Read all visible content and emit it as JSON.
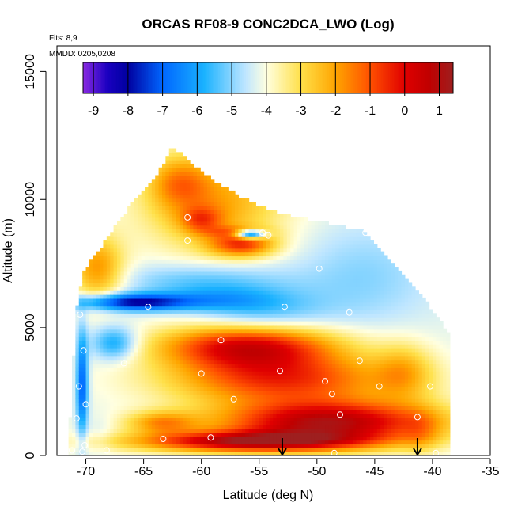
{
  "chart_data": {
    "type": "heatmap",
    "title": "ORCAS RF08-9 CONC2DCA_LWO (Log)",
    "flights_note": "Flts: 8,9",
    "date_note": "MMDD: 0205,0208",
    "xlabel": "Latitude (deg N)",
    "ylabel": "Altitude (m)",
    "xlim": [
      -72.5,
      -35
    ],
    "ylim": [
      0,
      16000
    ],
    "x_ticks": [
      "-70",
      "-65",
      "-60",
      "-55",
      "-50",
      "-45",
      "-40",
      "-35"
    ],
    "y_ticks": [
      "0",
      "5000",
      "10000",
      "15000"
    ],
    "colorbar": {
      "ticks": [
        "-9",
        "-8",
        "-7",
        "-6",
        "-5",
        "-4",
        "-3",
        "-2",
        "-1",
        "0",
        "1"
      ],
      "range": [
        -9.3,
        1.4
      ],
      "stops": [
        {
          "v": -9.3,
          "c": "#8a2be2"
        },
        {
          "v": -8.6,
          "c": "#1a00c0"
        },
        {
          "v": -8.0,
          "c": "#0000a0"
        },
        {
          "v": -7.0,
          "c": "#0066ff"
        },
        {
          "v": -5.8,
          "c": "#1ab2ff"
        },
        {
          "v": -4.6,
          "c": "#bfe6ff"
        },
        {
          "v": -4.0,
          "c": "#ffffe0"
        },
        {
          "v": -3.0,
          "c": "#ffe04a"
        },
        {
          "v": -2.0,
          "c": "#ffa500"
        },
        {
          "v": -1.0,
          "c": "#ff5000"
        },
        {
          "v": 0.0,
          "c": "#e00000"
        },
        {
          "v": 0.7,
          "c": "#c00000"
        },
        {
          "v": 1.4,
          "c": "#9e1f1f"
        }
      ]
    },
    "flight_arrows_lat": [
      -53,
      -41.3
    ],
    "sample_points": [
      {
        "lat": -70.5,
        "alt": 5500
      },
      {
        "lat": -70.2,
        "alt": 4100
      },
      {
        "lat": -70.6,
        "alt": 2700
      },
      {
        "lat": -70.0,
        "alt": 2000
      },
      {
        "lat": -70.8,
        "alt": 1450
      },
      {
        "lat": -70.1,
        "alt": 400
      },
      {
        "lat": -70.3,
        "alt": 150
      },
      {
        "lat": -71.2,
        "alt": 200
      },
      {
        "lat": -68.2,
        "alt": 200
      },
      {
        "lat": -66.7,
        "alt": 3600
      },
      {
        "lat": -64.6,
        "alt": 5800
      },
      {
        "lat": -63.3,
        "alt": 650
      },
      {
        "lat": -61.2,
        "alt": 9300
      },
      {
        "lat": -61.2,
        "alt": 8400
      },
      {
        "lat": -60.0,
        "alt": 3200
      },
      {
        "lat": -59.2,
        "alt": 700
      },
      {
        "lat": -58.3,
        "alt": 4500
      },
      {
        "lat": -57.2,
        "alt": 2200
      },
      {
        "lat": -54.7,
        "alt": 8700
      },
      {
        "lat": -54.2,
        "alt": 8600
      },
      {
        "lat": -53.2,
        "alt": 3300
      },
      {
        "lat": -52.8,
        "alt": 5800
      },
      {
        "lat": -49.8,
        "alt": 7300
      },
      {
        "lat": -49.3,
        "alt": 2900
      },
      {
        "lat": -48.0,
        "alt": 1600
      },
      {
        "lat": -48.7,
        "alt": 2400
      },
      {
        "lat": -47.2,
        "alt": 5600
      },
      {
        "lat": -46.3,
        "alt": 3700
      },
      {
        "lat": -45.8,
        "alt": 8700
      },
      {
        "lat": -44.6,
        "alt": 2700
      },
      {
        "lat": -41.3,
        "alt": 1500
      },
      {
        "lat": -40.2,
        "alt": 2700
      },
      {
        "lat": -39.7,
        "alt": 100
      },
      {
        "lat": -48.5,
        "alt": 100
      }
    ],
    "field": {
      "description": "log10 concentration field over latitude-altitude section",
      "background": -4.2,
      "envelope": [
        {
          "lat": -71.5,
          "top": 350
        },
        {
          "lat": -70.8,
          "top": 5700
        },
        {
          "lat": -70.2,
          "top": 7100
        },
        {
          "lat": -68.0,
          "top": 8500
        },
        {
          "lat": -66.0,
          "top": 9800
        },
        {
          "lat": -64.0,
          "top": 10800
        },
        {
          "lat": -62.5,
          "top": 12000
        },
        {
          "lat": -61.0,
          "top": 11400
        },
        {
          "lat": -59.0,
          "top": 10700
        },
        {
          "lat": -56.5,
          "top": 10000
        },
        {
          "lat": -54.0,
          "top": 9500
        },
        {
          "lat": -51.5,
          "top": 9200
        },
        {
          "lat": -49.0,
          "top": 9000
        },
        {
          "lat": -46.0,
          "top": 8700
        },
        {
          "lat": -43.5,
          "top": 7500
        },
        {
          "lat": -41.0,
          "top": 6200
        },
        {
          "lat": -38.4,
          "top": 4600
        }
      ],
      "features": [
        {
          "lat": -59.0,
          "alt": 9900,
          "slat": 6.0,
          "salt": 1900,
          "amp": 2.2
        },
        {
          "lat": -60.0,
          "alt": 9200,
          "slat": 1.8,
          "salt": 500,
          "amp": 1.8
        },
        {
          "lat": -56.5,
          "alt": 8250,
          "slat": 2.8,
          "salt": 480,
          "amp": 2.9
        },
        {
          "lat": -62.0,
          "alt": 10700,
          "slat": 2.5,
          "salt": 1000,
          "amp": 1.6
        },
        {
          "lat": -55.8,
          "alt": 8650,
          "slat": 1.3,
          "salt": 180,
          "amp": -4.8
        },
        {
          "lat": -57.0,
          "alt": 8750,
          "slat": 2.8,
          "salt": 220,
          "amp": 1.1
        },
        {
          "lat": -69.0,
          "alt": 7300,
          "slat": 2.3,
          "salt": 1300,
          "amp": 2.4
        },
        {
          "lat": -66.0,
          "alt": 6000,
          "slat": 5.0,
          "salt": 330,
          "amp": -3.8
        },
        {
          "lat": -58.5,
          "alt": 6100,
          "slat": 5.0,
          "salt": 450,
          "amp": -1.0
        },
        {
          "lat": -55.0,
          "alt": 5600,
          "slat": 5.5,
          "salt": 900,
          "amp": -1.3
        },
        {
          "lat": -60.0,
          "alt": 6800,
          "slat": 7.0,
          "salt": 700,
          "amp": -1.2
        },
        {
          "lat": -67.5,
          "alt": 4400,
          "slat": 2.0,
          "salt": 650,
          "amp": -2.0
        },
        {
          "lat": -70.3,
          "alt": 2800,
          "slat": 0.5,
          "salt": 2000,
          "amp": -3.0
        },
        {
          "lat": -68.7,
          "alt": 800,
          "slat": 1.0,
          "salt": 700,
          "amp": -0.3
        },
        {
          "lat": -56.0,
          "alt": 4300,
          "slat": 7.5,
          "salt": 850,
          "amp": 4.3
        },
        {
          "lat": -53.0,
          "alt": 3000,
          "slat": 9.5,
          "salt": 1000,
          "amp": 3.5
        },
        {
          "lat": -42.5,
          "alt": 3300,
          "slat": 2.5,
          "salt": 1100,
          "amp": 1.5
        },
        {
          "lat": -49.0,
          "alt": 1300,
          "slat": 9.5,
          "salt": 850,
          "amp": 5.1
        },
        {
          "lat": -56.0,
          "alt": 550,
          "slat": 10.0,
          "salt": 400,
          "amp": 4.6
        },
        {
          "lat": -41.0,
          "alt": 900,
          "slat": 1.5,
          "salt": 900,
          "amp": 0.8
        },
        {
          "lat": -63.5,
          "alt": 1300,
          "slat": 3.0,
          "salt": 450,
          "amp": 2.1
        },
        {
          "lat": -46.0,
          "alt": 7000,
          "slat": 6.0,
          "salt": 2000,
          "amp": -0.8
        }
      ]
    }
  }
}
